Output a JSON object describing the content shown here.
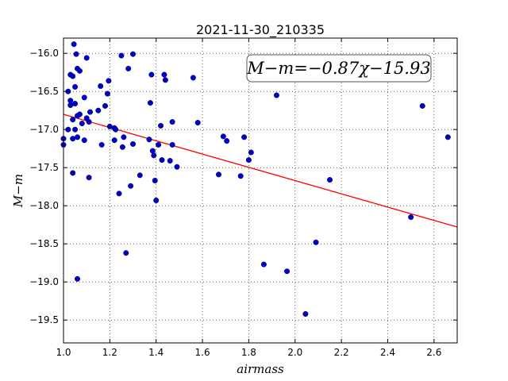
{
  "chart_data": {
    "type": "scatter",
    "title": "2021-11-30_210335",
    "xlabel": "airmass",
    "ylabel": "M−m",
    "xlim": [
      1.0,
      2.7
    ],
    "ylim": [
      -19.8,
      -15.8
    ],
    "y_inverted": true,
    "grid": true,
    "xticks": [
      "1.0",
      "1.2",
      "1.4",
      "1.6",
      "1.8",
      "2.0",
      "2.2",
      "2.4",
      "2.6"
    ],
    "yticks": [
      "−16.0",
      "−16.5",
      "−17.0",
      "−17.5",
      "−18.0",
      "−18.5",
      "−19.0",
      "−19.5"
    ],
    "fit_label": "M−m=−0.87χ−15.93",
    "fit": {
      "slope": -0.87,
      "intercept": -15.93,
      "color": "#ff0000"
    },
    "point_color": "#0000cc",
    "points": [
      [
        1.0,
        -17.12
      ],
      [
        1.0,
        -17.2
      ],
      [
        1.02,
        -17.0
      ],
      [
        1.02,
        -16.5
      ],
      [
        1.03,
        -16.28
      ],
      [
        1.03,
        -16.62
      ],
      [
        1.03,
        -16.68
      ],
      [
        1.04,
        -16.3
      ],
      [
        1.04,
        -16.87
      ],
      [
        1.04,
        -17.12
      ],
      [
        1.04,
        -17.57
      ],
      [
        1.045,
        -15.88
      ],
      [
        1.05,
        -16.44
      ],
      [
        1.05,
        -16.66
      ],
      [
        1.05,
        -17.0
      ],
      [
        1.055,
        -16.01
      ],
      [
        1.06,
        -16.2
      ],
      [
        1.06,
        -16.82
      ],
      [
        1.06,
        -17.1
      ],
      [
        1.06,
        -18.96
      ],
      [
        1.07,
        -16.23
      ],
      [
        1.07,
        -16.8
      ],
      [
        1.08,
        -16.92
      ],
      [
        1.09,
        -16.58
      ],
      [
        1.09,
        -17.14
      ],
      [
        1.1,
        -16.06
      ],
      [
        1.1,
        -16.85
      ],
      [
        1.11,
        -16.9
      ],
      [
        1.11,
        -17.63
      ],
      [
        1.115,
        -16.77
      ],
      [
        1.15,
        -16.75
      ],
      [
        1.16,
        -16.43
      ],
      [
        1.165,
        -17.2
      ],
      [
        1.18,
        -16.69
      ],
      [
        1.19,
        -16.53
      ],
      [
        1.195,
        -16.36
      ],
      [
        1.2,
        -16.96
      ],
      [
        1.22,
        -16.98
      ],
      [
        1.22,
        -17.14
      ],
      [
        1.225,
        -17.0
      ],
      [
        1.24,
        -17.84
      ],
      [
        1.25,
        -16.03
      ],
      [
        1.255,
        -17.23
      ],
      [
        1.26,
        -17.1
      ],
      [
        1.27,
        -18.62
      ],
      [
        1.28,
        -16.2
      ],
      [
        1.29,
        -17.74
      ],
      [
        1.3,
        -16.01
      ],
      [
        1.3,
        -17.19
      ],
      [
        1.33,
        -17.6
      ],
      [
        1.37,
        -17.13
      ],
      [
        1.375,
        -16.65
      ],
      [
        1.38,
        -16.28
      ],
      [
        1.385,
        -17.28
      ],
      [
        1.39,
        -17.34
      ],
      [
        1.395,
        -17.67
      ],
      [
        1.4,
        -17.93
      ],
      [
        1.41,
        -17.2
      ],
      [
        1.42,
        -16.95
      ],
      [
        1.425,
        -17.4
      ],
      [
        1.435,
        -16.28
      ],
      [
        1.44,
        -16.35
      ],
      [
        1.46,
        -17.41
      ],
      [
        1.47,
        -16.9
      ],
      [
        1.47,
        -17.2
      ],
      [
        1.49,
        -17.49
      ],
      [
        1.56,
        -16.32
      ],
      [
        1.58,
        -16.91
      ],
      [
        1.67,
        -17.59
      ],
      [
        1.69,
        -17.09
      ],
      [
        1.705,
        -17.15
      ],
      [
        1.765,
        -17.61
      ],
      [
        1.78,
        -17.1
      ],
      [
        1.8,
        -17.4
      ],
      [
        1.81,
        -17.3
      ],
      [
        1.865,
        -18.77
      ],
      [
        1.92,
        -16.55
      ],
      [
        1.965,
        -18.86
      ],
      [
        2.045,
        -19.42
      ],
      [
        2.09,
        -18.48
      ],
      [
        2.15,
        -17.66
      ],
      [
        2.5,
        -18.15
      ],
      [
        2.55,
        -16.69
      ],
      [
        2.66,
        -17.1
      ]
    ]
  }
}
